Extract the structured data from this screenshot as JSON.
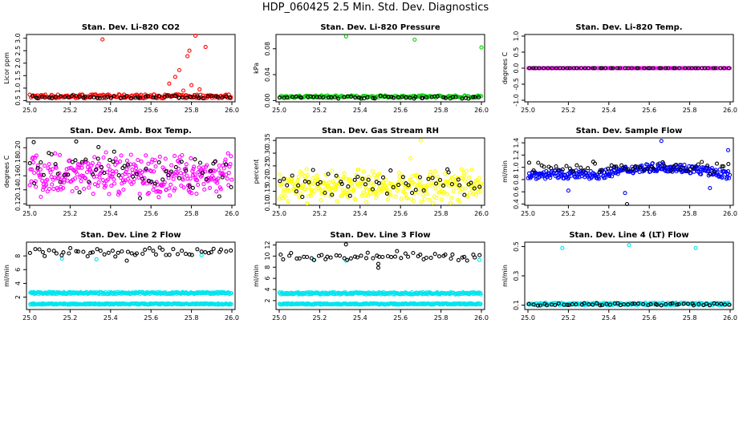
{
  "page": {
    "title": "HDP_060425  2.5 Min. Std. Dev. Diagnostics"
  },
  "chart_data": [
    {
      "type": "scatter",
      "title": "Stan. Dev. Li-820 CO2",
      "ylabel": "Licor ppm",
      "xlim": [
        25.0,
        26.0
      ],
      "ylim": [
        0.45,
        3.15
      ],
      "xticks": [
        "25.0",
        "25.2",
        "25.4",
        "25.6",
        "25.8",
        "26.0"
      ],
      "yticks": [
        "0.5",
        "1.0",
        "1.5",
        "2.0",
        "2.5",
        "3.0"
      ],
      "yticks_values": [
        0.5,
        1.0,
        1.5,
        2.0,
        2.5,
        3.0
      ],
      "series": [
        {
          "color": "#ff0000",
          "pattern": "band",
          "base": 0.67,
          "spread": 0.08,
          "count": 190,
          "points": [
            [
              25.36,
              2.95
            ],
            [
              25.74,
              1.72
            ],
            [
              25.8,
              1.12
            ],
            [
              25.69,
              1.18
            ],
            [
              25.72,
              1.45
            ],
            [
              25.78,
              2.28
            ],
            [
              25.79,
              2.5
            ],
            [
              25.82,
              3.1
            ],
            [
              25.87,
              2.65
            ],
            [
              25.84,
              0.95
            ],
            [
              25.76,
              0.9
            ]
          ]
        },
        {
          "color": "#000000",
          "pattern": "band",
          "base": 0.64,
          "spread": 0.05,
          "count": 55,
          "points": []
        }
      ]
    },
    {
      "type": "scatter",
      "title": "Stan. Dev. Li-820 Pressure",
      "ylabel": "kPa",
      "xlim": [
        25.0,
        26.0
      ],
      "ylim": [
        -0.002,
        0.102
      ],
      "xticks": [
        "25.0",
        "25.2",
        "25.4",
        "25.6",
        "25.8",
        "26.0"
      ],
      "yticks": [
        "0.00",
        "0.04",
        "0.08"
      ],
      "yticks_values": [
        0.0,
        0.04,
        0.08
      ],
      "series": [
        {
          "color": "#00cc00",
          "pattern": "band",
          "base": 0.006,
          "spread": 0.002,
          "count": 170,
          "points": [
            [
              25.33,
              0.099
            ],
            [
              25.67,
              0.094
            ],
            [
              26.0,
              0.082
            ]
          ]
        },
        {
          "color": "#000000",
          "pattern": "band",
          "base": 0.005,
          "spread": 0.002,
          "count": 55,
          "points": []
        }
      ]
    },
    {
      "type": "scatter",
      "title": "Stan. Dev. Li-820 Temp.",
      "ylabel": "degrees C",
      "xlim": [
        25.0,
        26.0
      ],
      "ylim": [
        -1.05,
        1.05
      ],
      "xticks": [
        "25.0",
        "25.2",
        "25.4",
        "25.6",
        "25.8",
        "26.0"
      ],
      "yticks": [
        "-1.0",
        "-0.5",
        "0.0",
        "0.5",
        "1.0"
      ],
      "yticks_values": [
        -1.0,
        -0.5,
        0.0,
        0.5,
        1.0
      ],
      "series": [
        {
          "color": "#ff00ff",
          "pattern": "band",
          "base": 0.0,
          "spread": 0.0,
          "count": 150,
          "points": []
        },
        {
          "color": "#000000",
          "pattern": "band",
          "base": 0.0,
          "spread": 0.0,
          "count": 55,
          "points": []
        }
      ]
    },
    {
      "type": "scatter",
      "title": "Stan. Dev. Amb. Box Temp.",
      "ylabel": "degrees C",
      "xlim": [
        25.0,
        26.0
      ],
      "ylim": [
        0.118,
        0.214
      ],
      "xticks": [
        "25.0",
        "25.2",
        "25.4",
        "25.6",
        "25.8",
        "26.0"
      ],
      "yticks": [
        "0.12",
        "0.14",
        "0.16",
        "0.18",
        "0.20"
      ],
      "yticks_values": [
        0.12,
        0.14,
        0.16,
        0.18,
        0.2
      ],
      "series": [
        {
          "color": "#ff00ff",
          "pattern": "cloud",
          "base": 0.161,
          "spread": 0.021,
          "count": 330,
          "points": []
        },
        {
          "color": "#000000",
          "pattern": "cloud",
          "base": 0.165,
          "spread": 0.024,
          "count": 60,
          "points": [
            [
              25.02,
              0.208
            ],
            [
              25.23,
              0.209
            ],
            [
              25.34,
              0.201
            ]
          ]
        }
      ]
    },
    {
      "type": "scatter",
      "title": "Stan. Dev. Gas Stream RH",
      "ylabel": "percent",
      "xlim": [
        25.0,
        26.0
      ],
      "ylim": [
        0.095,
        0.36
      ],
      "xticks": [
        "25.0",
        "25.2",
        "25.4",
        "25.6",
        "25.8",
        "26.0"
      ],
      "yticks": [
        "0.10",
        "0.15",
        "0.20",
        "0.25",
        "0.30",
        "0.35"
      ],
      "yticks_values": [
        0.1,
        0.15,
        0.2,
        0.25,
        0.3,
        0.35
      ],
      "series": [
        {
          "color": "#ffff00",
          "pattern": "cloud",
          "base": 0.17,
          "spread": 0.045,
          "count": 330,
          "points": [
            [
              25.7,
              0.35
            ],
            [
              25.65,
              0.28
            ]
          ]
        },
        {
          "color": "#000000",
          "pattern": "cloud",
          "base": 0.18,
          "spread": 0.04,
          "count": 55,
          "points": []
        }
      ]
    },
    {
      "type": "scatter",
      "title": "Stan. Dev. Sample Flow",
      "ylabel": "ml/min",
      "xlim": [
        25.0,
        26.0
      ],
      "ylim": [
        0.38,
        1.48
      ],
      "xticks": [
        "25.0",
        "25.2",
        "25.4",
        "25.6",
        "25.8",
        "26.0"
      ],
      "yticks": [
        "0.4",
        "0.6",
        "0.8",
        "1.0",
        "1.2",
        "1.4"
      ],
      "yticks_values": [
        0.4,
        0.6,
        0.8,
        1.0,
        1.2,
        1.4
      ],
      "series": [
        {
          "color": "#0000ff",
          "pattern": "wave",
          "base": 0.88,
          "spread": 0.07,
          "count": 300,
          "points": [
            [
              25.66,
              1.43
            ],
            [
              25.99,
              1.28
            ],
            [
              25.2,
              0.62
            ],
            [
              25.48,
              0.58
            ],
            [
              25.9,
              0.66
            ]
          ]
        },
        {
          "color": "#000000",
          "pattern": "cloud",
          "base": 1.0,
          "spread": 0.08,
          "count": 55,
          "points": [
            [
              25.49,
              0.4
            ]
          ]
        }
      ]
    },
    {
      "type": "scatter",
      "title": "Stan. Dev. Line 2 Flow",
      "ylabel": "ml/min",
      "xlim": [
        25.0,
        26.0
      ],
      "ylim": [
        0.2,
        10.0
      ],
      "xticks": [
        "25.0",
        "25.2",
        "25.4",
        "25.6",
        "25.8",
        "26.0"
      ],
      "yticks": [
        "2",
        "4",
        "6",
        "8"
      ],
      "yticks_values": [
        2,
        4,
        6,
        8
      ],
      "series": [
        {
          "color": "#00e5ee",
          "pattern": "band",
          "base": 2.6,
          "spread": 0.15,
          "count": 260,
          "points": [
            [
              25.16,
              7.6
            ],
            [
              25.33,
              7.5
            ],
            [
              25.85,
              8.1
            ]
          ]
        },
        {
          "color": "#00e5ee",
          "pattern": "band",
          "base": 1.0,
          "spread": 0.1,
          "count": 260,
          "points": []
        },
        {
          "color": "#000000",
          "pattern": "cloud",
          "base": 8.6,
          "spread": 0.5,
          "count": 55,
          "points": [
            [
              25.33,
              9.9
            ],
            [
              25.48,
              7.3
            ]
          ]
        }
      ]
    },
    {
      "type": "scatter",
      "title": "Stan. Dev. Line 3 Flow",
      "ylabel": "ml/min",
      "xlim": [
        25.0,
        26.0
      ],
      "ylim": [
        0.4,
        12.5
      ],
      "xticks": [
        "25.0",
        "25.2",
        "25.4",
        "25.6",
        "25.8",
        "26.0"
      ],
      "yticks": [
        "2",
        "4",
        "6",
        "8",
        "10",
        "12"
      ],
      "yticks_values": [
        2,
        4,
        6,
        8,
        10,
        12
      ],
      "series": [
        {
          "color": "#00e5ee",
          "pattern": "band",
          "base": 3.3,
          "spread": 0.2,
          "count": 260,
          "points": [
            [
              25.17,
              9.3
            ],
            [
              25.33,
              9.2
            ],
            [
              25.99,
              9.3
            ]
          ]
        },
        {
          "color": "#00e5ee",
          "pattern": "band",
          "base": 1.4,
          "spread": 0.12,
          "count": 260,
          "points": []
        },
        {
          "color": "#000000",
          "pattern": "cloud",
          "base": 10.0,
          "spread": 0.6,
          "count": 55,
          "points": [
            [
              25.33,
              12.1
            ],
            [
              25.49,
              7.9
            ],
            [
              25.49,
              8.6
            ]
          ]
        }
      ]
    },
    {
      "type": "scatter",
      "title": "Stan. Dev. Line 4 (LT) Flow",
      "ylabel": "ml/min",
      "xlim": [
        25.0,
        26.0
      ],
      "ylim": [
        0.07,
        0.53
      ],
      "xticks": [
        "25.0",
        "25.2",
        "25.4",
        "25.6",
        "25.8",
        "26.0"
      ],
      "yticks": [
        "0.1",
        "0.3",
        "0.5"
      ],
      "yticks_values": [
        0.1,
        0.3,
        0.5
      ],
      "series": [
        {
          "color": "#00e5ee",
          "pattern": "band",
          "base": 0.108,
          "spread": 0.008,
          "count": 260,
          "points": [
            [
              25.17,
              0.49
            ],
            [
              25.5,
              0.51
            ],
            [
              25.83,
              0.49
            ]
          ]
        },
        {
          "color": "#000000",
          "pattern": "band",
          "base": 0.105,
          "spread": 0.008,
          "count": 55,
          "points": []
        }
      ]
    }
  ]
}
